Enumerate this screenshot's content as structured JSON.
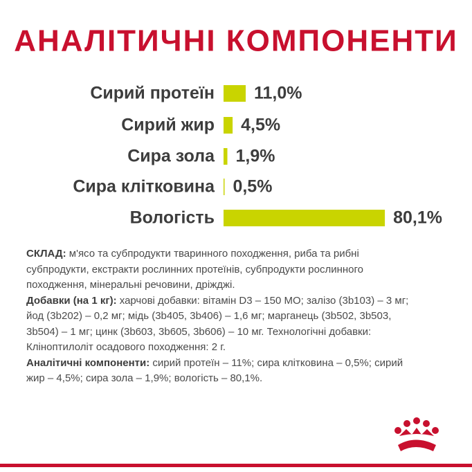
{
  "chart_data": {
    "type": "bar",
    "orientation": "horizontal",
    "title": "АНАЛІТИЧНІ КОМПОНЕНТИ",
    "categories": [
      "Сирий протеїн",
      "Сирий жир",
      "Сира зола",
      "Сира клітковина",
      "Вологість"
    ],
    "values": [
      11.0,
      4.5,
      1.9,
      0.5,
      80.1
    ],
    "value_labels": [
      "11,0%",
      "4,5%",
      "1,9%",
      "0,5%",
      "80,1%"
    ],
    "color": "#c9d400"
  },
  "composition": [
    {
      "label": "СКЛАД:",
      "text": " м'ясо та субпродукти тваринного походження, риба та рибні субпродукти, екстракти рослинних протеїнів, субпродукти рослинного походження, мінеральні речовини, дріжджі."
    },
    {
      "label": "Добавки (на 1 кг):",
      "text": " харчові добавки: вітамін D3 – 150 МО; залізо (3b103) – 3 мг; йод (3b202) – 0,2 мг; мідь (3b405, 3b406) – 1,6 мг; марганець (3b502, 3b503, 3b504) – 1 мг; цинк (3b603, 3b605, 3b606) – 10 мг. Технологічні добавки: Кліноптилоліт осадового походження: 2 г."
    },
    {
      "label": "Аналітичні компоненти:",
      "text": " сирий протеїн – 11%; сира клітковина – 0,5%; сирий жир – 4,5%; сира зола – 1,9%; вологість – 80,1%."
    }
  ]
}
